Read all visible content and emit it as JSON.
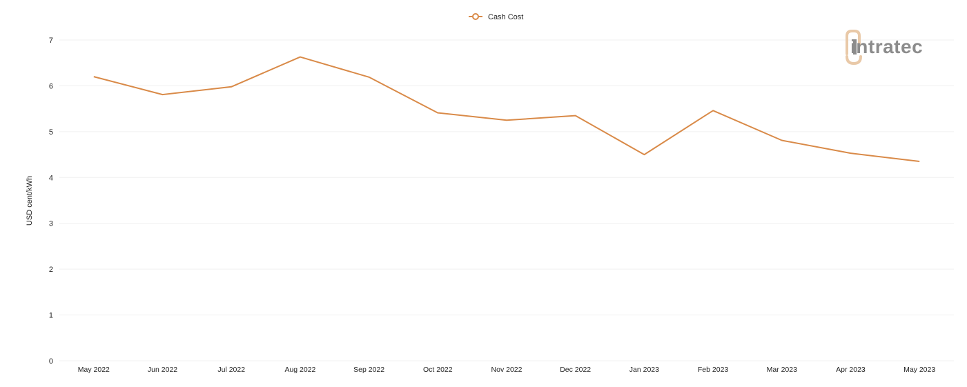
{
  "chart_data": {
    "type": "line",
    "categories": [
      "May 2022",
      "Jun 2022",
      "Jul 2022",
      "Aug 2022",
      "Sep 2022",
      "Oct 2022",
      "Nov 2022",
      "Dec 2022",
      "Jan 2023",
      "Feb 2023",
      "Mar 2023",
      "Apr 2023",
      "May 2023"
    ],
    "series": [
      {
        "name": "Cash Cost",
        "color": "#d98a48",
        "values": [
          6.2,
          5.81,
          5.98,
          6.63,
          6.19,
          5.41,
          5.25,
          5.35,
          4.5,
          5.46,
          4.81,
          4.53,
          4.35
        ]
      }
    ],
    "ylabel": "USD cent/kWh",
    "xlabel": "",
    "ylim": [
      0,
      7
    ],
    "yticks": [
      "0",
      "1",
      "2",
      "3",
      "4",
      "5",
      "6",
      "7"
    ],
    "grid": true,
    "legend_position": "top-center"
  },
  "logo": {
    "text": "intratec",
    "icon": "intratec-logo-icon",
    "color": "#8c8c8c",
    "accent": "#e9c9a8"
  }
}
